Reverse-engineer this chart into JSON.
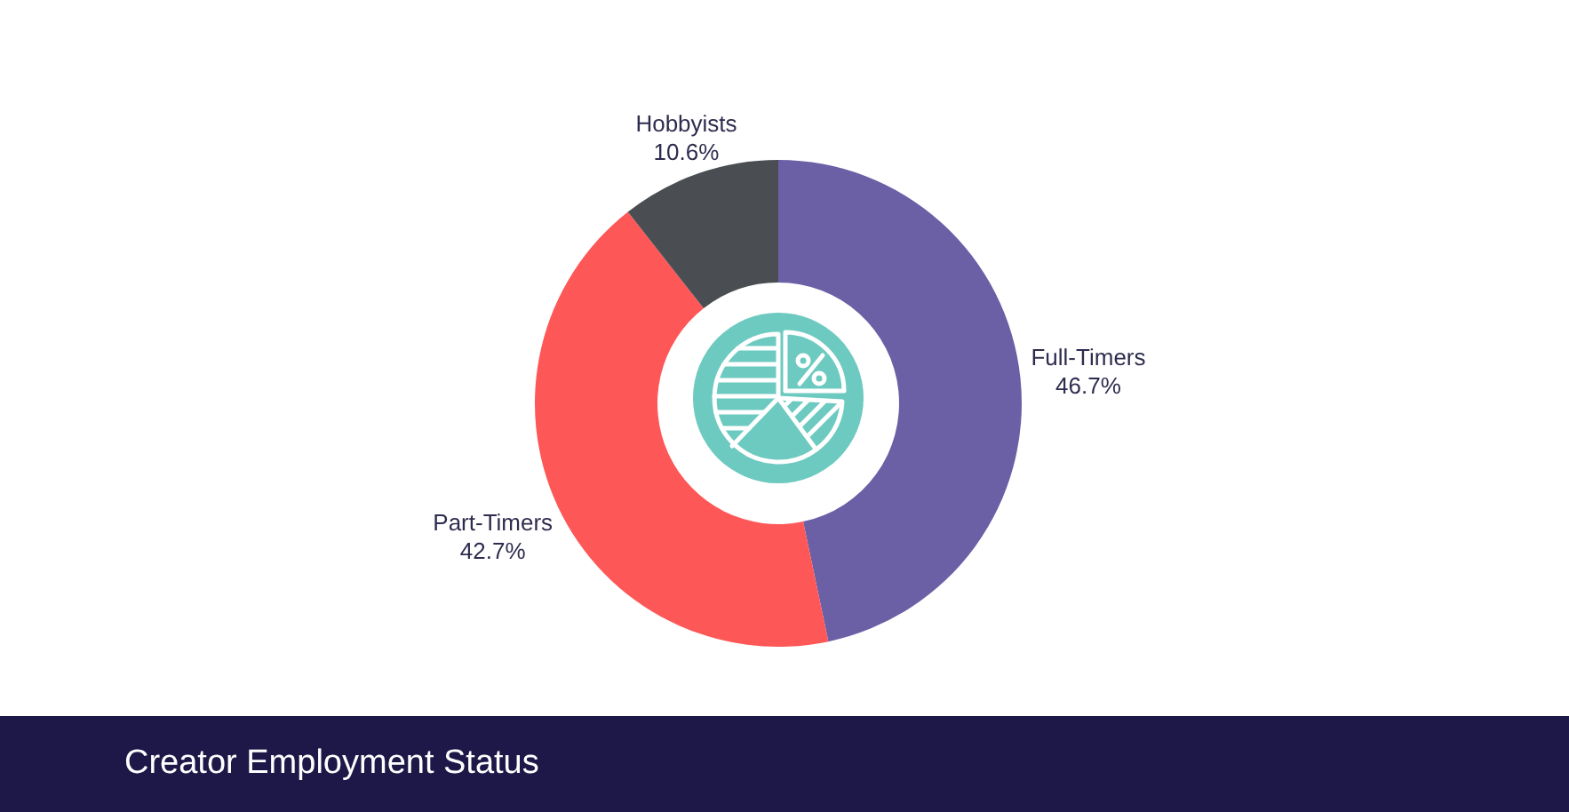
{
  "chart_data": {
    "type": "donut",
    "title": "Creator Employment Status",
    "categories": [
      "Full-Timers",
      "Part-Timers",
      "Hobbyists"
    ],
    "values": [
      46.7,
      42.7,
      10.6
    ],
    "value_labels": [
      "46.7%",
      "42.7%",
      "10.6%"
    ],
    "colors": [
      "#6b5fa5",
      "#fe5757",
      "#4a4e52"
    ],
    "legend": false
  }
}
